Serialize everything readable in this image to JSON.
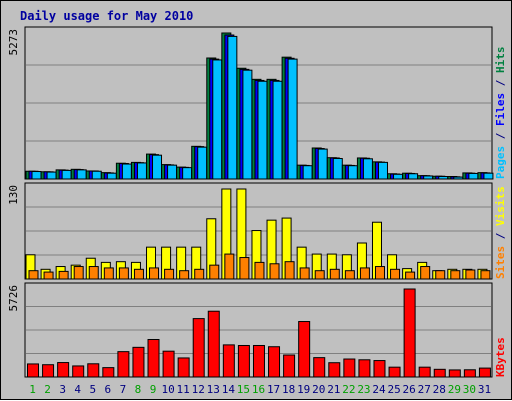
{
  "chart_data": {
    "type": "bar",
    "title": "Daily usage for May 2010",
    "days": [
      "1",
      "2",
      "3",
      "4",
      "5",
      "6",
      "7",
      "8",
      "9",
      "10",
      "11",
      "12",
      "13",
      "14",
      "15",
      "16",
      "17",
      "18",
      "19",
      "20",
      "21",
      "22",
      "23",
      "24",
      "25",
      "26",
      "27",
      "28",
      "29",
      "30",
      "31"
    ],
    "weekend_days": [
      "1",
      "2",
      "8",
      "9",
      "15",
      "16",
      "22",
      "23",
      "29",
      "30"
    ],
    "panels": [
      {
        "id": "hits",
        "ymax_label": "5273",
        "ymax": 5273,
        "legend": [
          {
            "text": "Pages",
            "color": "#00c0ff"
          },
          {
            "text": " / ",
            "color": "#000080"
          },
          {
            "text": "Files",
            "color": "#0000ff"
          },
          {
            "text": " / ",
            "color": "#000080"
          },
          {
            "text": "Hits",
            "color": "#008040"
          }
        ],
        "series": [
          {
            "name": "Hits",
            "color": "#008040",
            "values": [
              280,
              260,
              330,
              350,
              290,
              230,
              570,
              600,
              900,
              520,
              430,
              1180,
              4370,
              5273,
              4000,
              3600,
              3600,
              4400,
              500,
              1120,
              770,
              500,
              760,
              620,
              190,
              210,
              120,
              100,
              90,
              220,
              230
            ]
          },
          {
            "name": "Files",
            "color": "#0000ff",
            "values": [
              280,
              260,
              320,
              340,
              290,
              220,
              560,
              590,
              880,
              510,
              420,
              1170,
              4330,
              5200,
              3960,
              3560,
              3560,
              4360,
              490,
              1100,
              760,
              490,
              750,
              610,
              180,
              200,
              120,
              100,
              80,
              210,
              220
            ]
          },
          {
            "name": "Pages",
            "color": "#00c0ff",
            "values": [
              270,
              250,
              310,
              330,
              280,
              210,
              540,
              580,
              860,
              500,
              410,
              1150,
              4300,
              5150,
              3930,
              3530,
              3530,
              4330,
              480,
              1080,
              740,
              480,
              730,
              600,
              170,
              190,
              110,
              90,
              70,
              200,
              210
            ]
          }
        ]
      },
      {
        "id": "visits",
        "ymax_label": "130",
        "ymax": 130,
        "legend": [
          {
            "text": "Sites",
            "color": "#ff8000"
          },
          {
            "text": " / ",
            "color": "#000080"
          },
          {
            "text": "Visits",
            "color": "#ffff00"
          }
        ],
        "series": [
          {
            "name": "Visits",
            "color": "#ffff00",
            "values": [
              35,
              14,
              18,
              20,
              30,
              24,
              25,
              24,
              46,
              46,
              46,
              46,
              87,
              130,
              130,
              70,
              85,
              88,
              46,
              36,
              36,
              35,
              52,
              82,
              35,
              15,
              24,
              12,
              14,
              14,
              14
            ]
          },
          {
            "name": "Sites",
            "color": "#ff8000",
            "values": [
              12,
              10,
              11,
              18,
              18,
              16,
              16,
              14,
              16,
              14,
              12,
              14,
              20,
              36,
              31,
              24,
              22,
              25,
              16,
              12,
              14,
              12,
              16,
              18,
              14,
              10,
              18,
              12,
              12,
              13,
              12
            ]
          }
        ]
      },
      {
        "id": "kbytes",
        "ymax_label": "5726",
        "ymax": 5726,
        "legend": [
          {
            "text": "KBytes",
            "color": "#ff0000"
          }
        ],
        "series": [
          {
            "name": "KBytes",
            "color": "#ff0000",
            "values": [
              850,
              800,
              940,
              720,
              860,
              610,
              1650,
              1930,
              2440,
              1680,
              1240,
              3800,
              4280,
              2090,
              2050,
              2050,
              1970,
              1430,
              3610,
              1260,
              930,
              1170,
              1120,
              1070,
              640,
              5726,
              640,
              500,
              460,
              470,
              580
            ]
          }
        ]
      }
    ]
  }
}
